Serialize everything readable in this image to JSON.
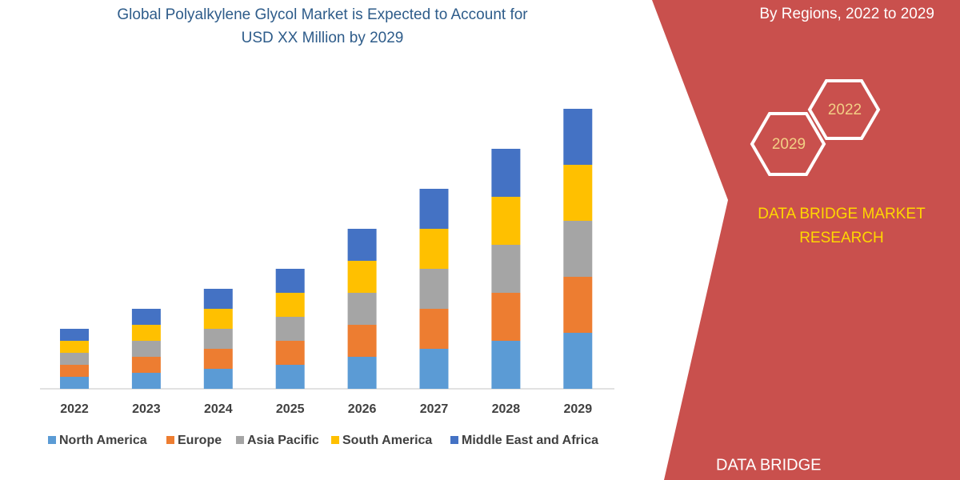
{
  "chart_data": {
    "type": "stacked_bar",
    "title": [
      "Global Polyalkylene Glycol Market is Expected to Account for",
      "USD XX Million by 2029"
    ],
    "categories": [
      "2022",
      "2023",
      "2024",
      "2025",
      "2026",
      "2027",
      "2028",
      "2029"
    ],
    "series": [
      {
        "name": "North America",
        "color": "#5b9bd5",
        "values": [
          15,
          20,
          25,
          30,
          40,
          50,
          60,
          70
        ]
      },
      {
        "name": "Europe",
        "color": "#ed7d31",
        "values": [
          15,
          20,
          25,
          30,
          40,
          50,
          60,
          70
        ]
      },
      {
        "name": "Asia Pacific",
        "color": "#a5a5a5",
        "values": [
          15,
          20,
          25,
          30,
          40,
          50,
          60,
          70
        ]
      },
      {
        "name": "South America",
        "color": "#ffc000",
        "values": [
          15,
          20,
          25,
          30,
          40,
          50,
          60,
          70
        ]
      },
      {
        "name": "Middle East and Africa",
        "color": "#4472c4",
        "values": [
          15,
          20,
          25,
          30,
          40,
          50,
          60,
          70
        ]
      }
    ]
  },
  "panel": {
    "subtitle": "By Regions, 2022 to 2029",
    "hexagons": [
      "2022",
      "2029"
    ],
    "brand": [
      "DATA BRIDGE MARKET",
      "RESEARCH"
    ],
    "logo": "DATA BRIDGE"
  }
}
